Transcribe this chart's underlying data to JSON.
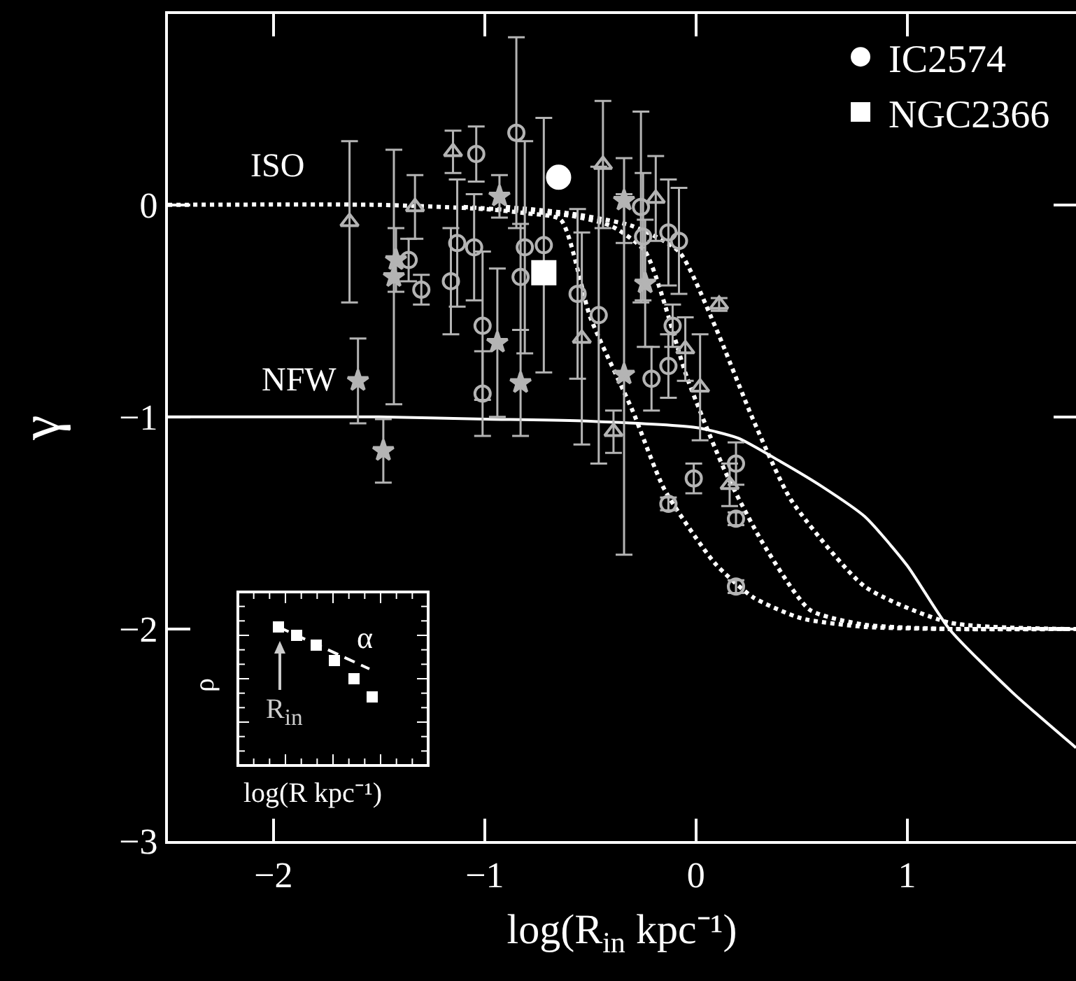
{
  "chart_data": {
    "type": "scatter",
    "xlabel": "log(R$_{in}$ kpc⁻¹)",
    "ylabel": "γ",
    "xlim": [
      -2.5,
      1.8
    ],
    "ylim": [
      -3,
      0.9
    ],
    "xticks": [
      {
        "value": -2,
        "label": "−2"
      },
      {
        "value": -1,
        "label": "−1"
      },
      0,
      1
    ],
    "yticks": [
      {
        "value": -3,
        "label": "−3"
      },
      {
        "value": -2,
        "label": "−2"
      },
      {
        "value": -1,
        "label": "−1"
      },
      0
    ],
    "grid": false,
    "legend": "top right",
    "annotations": [
      "ISO",
      "NFW",
      "ρ",
      "α",
      "R$_{in}$",
      "log(R kpc⁻¹)"
    ],
    "series": [
      {
        "type": "line",
        "line_style": "solid",
        "color": "#ffffff",
        "x": [
          -2.5,
          -1.5,
          -1,
          -0.5,
          0,
          0.2,
          0.4,
          0.6,
          0.8,
          1.0,
          1.2,
          1.5,
          1.8
        ],
        "values": [
          -1,
          -1,
          -1.01,
          -1.02,
          -1.05,
          -1.1,
          -1.21,
          -1.33,
          -1.47,
          -1.7,
          -2.0,
          -2.3,
          -2.56
        ]
      },
      {
        "type": "line",
        "line_style": "dotted",
        "color": "#ffffff",
        "x": [
          -2.5,
          -1.5,
          -1.0,
          -0.8,
          -0.64,
          -0.5,
          -0.3,
          -0.15,
          0.09,
          0.27,
          0.5,
          0.8,
          1.2,
          1.8
        ],
        "values": [
          0,
          0,
          -0.02,
          -0.04,
          -0.07,
          -0.53,
          -0.97,
          -1.34,
          -1.69,
          -1.85,
          -1.95,
          -1.99,
          -2,
          -2
        ]
      },
      {
        "type": "line",
        "line_style": "dotted",
        "color": "#ffffff",
        "x": [
          -1.1,
          -0.6,
          -0.4,
          -0.24,
          -0.04,
          0.14,
          0.32,
          0.54,
          0.8,
          1.2,
          1.8
        ],
        "values": [
          -0.01,
          -0.05,
          -0.1,
          -0.22,
          -0.82,
          -1.26,
          -1.6,
          -1.91,
          -1.98,
          -2,
          -2
        ]
      },
      {
        "type": "line",
        "line_style": "dotted",
        "color": "#ffffff",
        "x": [
          -0.9,
          -0.6,
          -0.3,
          -0.08,
          0.09,
          0.27,
          0.45,
          0.8,
          1.2,
          1.75
        ],
        "values": [
          -0.01,
          -0.04,
          -0.1,
          -0.22,
          -0.57,
          -1.01,
          -1.39,
          -1.8,
          -1.97,
          -2
        ]
      },
      {
        "marker": "circle",
        "color": "#b4b4b4",
        "x": [
          -1.04,
          -0.85,
          -1.13,
          -1.05,
          -1.36,
          -1.3,
          -1.16,
          -1.01,
          -1.01,
          -0.81,
          -0.83,
          -0.72,
          -0.56,
          -0.46,
          -0.26,
          -0.25,
          -0.13,
          -0.08,
          -0.11,
          -0.13,
          -0.21,
          0.19,
          -0.01,
          -0.13,
          0.19,
          0.19
        ],
        "values": [
          0.24,
          0.34,
          -0.18,
          -0.2,
          -0.26,
          -0.4,
          -0.36,
          -0.57,
          -0.89,
          -0.2,
          -0.34,
          -0.19,
          -0.42,
          -0.52,
          -0.01,
          -0.15,
          -0.13,
          -0.17,
          -0.57,
          -0.76,
          -0.82,
          -1.22,
          -1.29,
          -1.41,
          -1.48,
          -1.8
        ],
        "errors": [
          0.13,
          0.45,
          0.3,
          0.25,
          0.1,
          0.07,
          0.25,
          0.35,
          0.2,
          0.5,
          0.25,
          0.6,
          0.4,
          0.7,
          0.45,
          0.3,
          0.25,
          0.25,
          0.1,
          0.15,
          0.15,
          0.1,
          0.07,
          0.03,
          0.03,
          0.03
        ]
      },
      {
        "marker": "triangle",
        "color": "#b4b4b4",
        "x": [
          -1.15,
          -1.64,
          -1.33,
          0.11,
          -0.05,
          0.02,
          -0.44,
          -0.19,
          -0.54,
          0.16,
          -0.39
        ],
        "values": [
          0.25,
          -0.08,
          -0.01,
          -0.47,
          -0.68,
          -0.86,
          0.19,
          0.03,
          -0.63,
          -1.32,
          -1.07
        ],
        "errors": [
          0.1,
          0.38,
          0.15,
          0.03,
          0.15,
          0.25,
          0.3,
          0.2,
          0.5,
          0.1,
          0.1
        ]
      },
      {
        "marker": "star",
        "color": "#b4b4b4",
        "x": [
          -1.42,
          -1.43,
          -0.93,
          -0.94,
          -0.83,
          -1.6,
          -1.48,
          -0.24,
          -0.34,
          -0.34
        ],
        "values": [
          -0.26,
          -0.34,
          0.04,
          -0.65,
          -0.84,
          -0.83,
          -1.16,
          -0.37,
          0.02,
          -0.8
        ],
        "errors": [
          0.15,
          0.6,
          0.1,
          0.35,
          0.25,
          0.2,
          0.15,
          0.3,
          0.2,
          0.85
        ]
      },
      {
        "marker": "circle",
        "name": "IC2574",
        "color": "#ffffff",
        "x": [
          -0.65
        ],
        "values": [
          0.13
        ]
      },
      {
        "marker": "square",
        "name": "NGC2366",
        "color": "#ffffff",
        "x": [
          -0.72
        ],
        "values": [
          -0.32
        ]
      }
    ]
  }
}
